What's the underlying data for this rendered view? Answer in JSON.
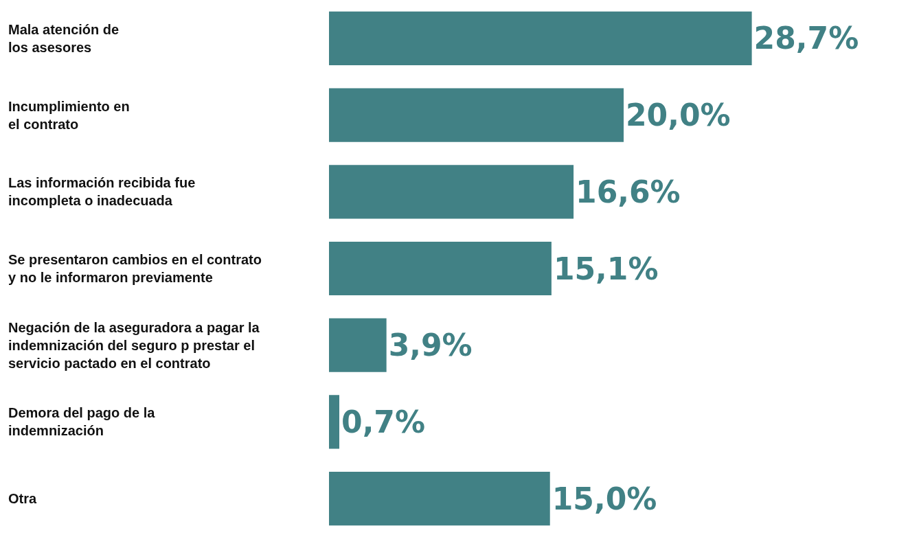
{
  "chart_data": {
    "type": "bar",
    "orientation": "horizontal",
    "categories": [
      "Mala atención de\nlos asesores",
      "Incumplimiento en\nel contrato",
      "Las información recibida fue\nincompleta o inadecuada",
      "Se presentaron cambios en el contrato\ny no le informaron previamente",
      "Negación de la aseguradora a pagar la\nindemnización del seguro p prestar el\nservicio pactado en el contrato",
      "Demora del pago de la\nindemnización",
      "Otra"
    ],
    "values": [
      28.7,
      20.0,
      16.6,
      15.1,
      3.9,
      0.7,
      15.0
    ],
    "value_labels": [
      "28,7%",
      "20,0%",
      "16,6%",
      "15,1%",
      "3,9%",
      "0,7%",
      "15,0%"
    ],
    "color": "#418185",
    "tick_labels": "y",
    "grid": false,
    "legend": false
  }
}
